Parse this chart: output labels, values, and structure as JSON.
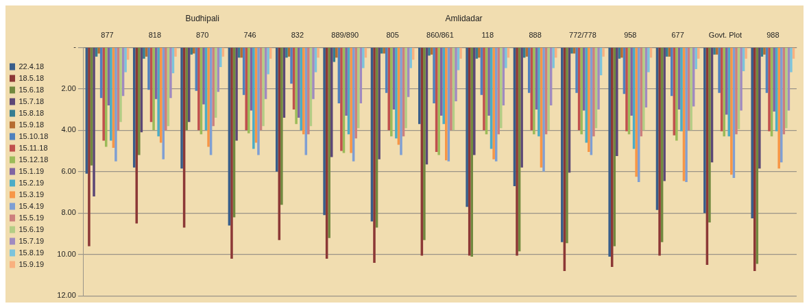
{
  "chart_data": {
    "type": "bar",
    "categories": [
      "877",
      "818",
      "870",
      "746",
      "832",
      "889/890",
      "805",
      "860/861",
      "118",
      "888",
      "772/778",
      "958",
      "677",
      "Govt. Plot",
      "988"
    ],
    "annotations": [
      "Budhipali",
      "Amlidadar"
    ],
    "ylim": [
      12,
      0
    ],
    "yticks": [
      {
        "value": 0,
        "label": "-"
      },
      {
        "value": 2,
        "label": "2.00"
      },
      {
        "value": 4,
        "label": "4.00"
      },
      {
        "value": 6,
        "label": "6.00"
      },
      {
        "value": 8,
        "label": "8.00"
      },
      {
        "value": 10,
        "label": "10.00"
      },
      {
        "value": 12,
        "label": "12.00"
      }
    ],
    "grid": "y",
    "legend": "left",
    "series": [
      {
        "name": "22.4.18",
        "color": "#385d8a",
        "values": [
          6.1,
          5.8,
          5.85,
          8.6,
          6.0,
          8.1,
          8.4,
          3.7,
          7.7,
          6.7,
          9.4,
          10.1,
          7.85,
          8.0,
          8.25
        ]
      },
      {
        "name": "18.5.18",
        "color": "#8c3836",
        "values": [
          9.6,
          8.5,
          8.7,
          10.2,
          9.3,
          10.2,
          10.4,
          10.05,
          10.05,
          10.05,
          10.8,
          10.6,
          10.05,
          10.5,
          10.8
        ]
      },
      {
        "name": "15.6.18",
        "color": "#71893f",
        "values": [
          5.7,
          5.2,
          4.0,
          8.2,
          7.6,
          9.2,
          8.7,
          9.3,
          10.1,
          9.85,
          9.45,
          9.6,
          9.4,
          8.45,
          10.45
        ]
      },
      {
        "name": "15.7.18",
        "color": "#5c4776",
        "values": [
          7.2,
          4.1,
          3.6,
          4.5,
          3.4,
          5.3,
          5.4,
          5.65,
          5.2,
          5.8,
          6.05,
          5.25,
          6.45,
          5.55,
          5.85
        ]
      },
      {
        "name": "15.8.18",
        "color": "#357d91",
        "values": [
          0.45,
          0.55,
          0.35,
          0.5,
          0.5,
          0.7,
          0.3,
          0.4,
          0.55,
          0.5,
          0.3,
          0.55,
          0.45,
          0.35,
          0.45
        ]
      },
      {
        "name": "15.9.18",
        "color": "#b66d31",
        "values": [
          0.3,
          0.45,
          0.3,
          0.5,
          0.45,
          0.5,
          0.3,
          0.35,
          0.5,
          0.45,
          0.3,
          0.5,
          0.45,
          0.35,
          0.35
        ]
      },
      {
        "name": "15.10.18",
        "color": "#4f81bd",
        "values": [
          2.45,
          2.05,
          2.1,
          2.3,
          1.75,
          2.7,
          2.2,
          2.7,
          2.3,
          2.2,
          2.2,
          2.25,
          2.35,
          2.2,
          2.2
        ]
      },
      {
        "name": "15.11.18",
        "color": "#c0504d",
        "values": [
          4.5,
          3.6,
          4.0,
          4.0,
          3.0,
          5.0,
          4.0,
          5.05,
          4.0,
          4.0,
          4.0,
          4.05,
          4.25,
          4.05,
          4.05
        ]
      },
      {
        "name": "15.12.18",
        "color": "#9bbb59",
        "values": [
          4.8,
          4.0,
          4.2,
          4.15,
          3.7,
          5.1,
          4.3,
          5.2,
          4.2,
          4.2,
          4.2,
          4.2,
          4.5,
          4.3,
          4.3
        ]
      },
      {
        "name": "15.1.19",
        "color": "#8064a2",
        "values": [
          2.8,
          2.5,
          2.75,
          3.05,
          3.4,
          3.3,
          3.0,
          3.3,
          3.3,
          3.0,
          3.05,
          3.3,
          3.0,
          3.25,
          3.1
        ]
      },
      {
        "name": "15.2.19",
        "color": "#4bacc6",
        "values": [
          4.5,
          4.3,
          4.0,
          4.9,
          4.0,
          4.2,
          4.4,
          3.7,
          4.9,
          4.3,
          4.6,
          4.9,
          4.05,
          4.3,
          4.05
        ]
      },
      {
        "name": "15.3.19",
        "color": "#f79646",
        "values": [
          4.85,
          4.6,
          4.8,
          4.6,
          4.2,
          5.1,
          4.7,
          5.45,
          5.4,
          5.8,
          5.05,
          6.25,
          6.45,
          6.15,
          5.85
        ]
      },
      {
        "name": "15.4.19",
        "color": "#7f9fd3",
        "values": [
          5.5,
          5.4,
          5.2,
          5.2,
          5.2,
          5.5,
          5.2,
          5.5,
          5.5,
          6.0,
          5.2,
          6.5,
          6.5,
          6.3,
          5.55
        ]
      },
      {
        "name": "15.5.19",
        "color": "#cd7f7d",
        "values": [
          4.0,
          4.0,
          3.8,
          4.0,
          4.2,
          4.4,
          4.3,
          4.0,
          4.2,
          4.2,
          4.3,
          4.3,
          4.0,
          4.2,
          4.2
        ]
      },
      {
        "name": "15.6.19",
        "color": "#b3cd85",
        "values": [
          3.6,
          3.8,
          3.4,
          3.8,
          3.8,
          3.9,
          3.9,
          4.0,
          3.9,
          4.0,
          3.9,
          4.0,
          4.0,
          3.95,
          3.9
        ]
      },
      {
        "name": "15.7.19",
        "color": "#a08ac0",
        "values": [
          2.35,
          2.45,
          2.15,
          2.5,
          2.5,
          2.7,
          2.4,
          2.6,
          2.8,
          2.8,
          3.0,
          2.9,
          2.85,
          3.05,
          3.05
        ]
      },
      {
        "name": "15.8.19",
        "color": "#7cc4dc",
        "values": [
          1.2,
          1.25,
          0.95,
          1.3,
          1.2,
          1.0,
          1.0,
          1.1,
          1.0,
          1.0,
          1.35,
          1.2,
          1.05,
          1.15,
          1.2
        ]
      },
      {
        "name": "15.9.19",
        "color": "#f9b17f",
        "values": [
          0.6,
          0.45,
          0.45,
          0.55,
          0.5,
          0.5,
          0.6,
          0.55,
          0.5,
          0.5,
          0.45,
          0.5,
          0.55,
          0.55,
          0.55
        ]
      }
    ]
  }
}
